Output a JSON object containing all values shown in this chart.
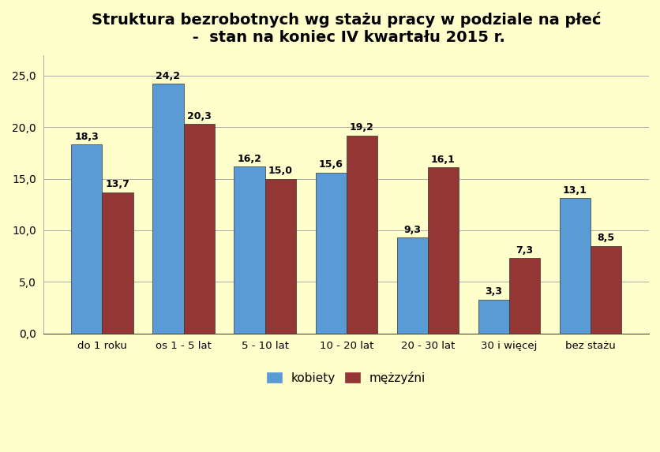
{
  "title": "Struktura bezrobotnych wg stażu pracy w podziale na płeć\n -  stan na koniec IV kwartału 2015 r.",
  "categories": [
    "do 1 roku",
    "os 1 - 5 lat",
    "5 - 10 lat",
    "10 - 20 lat",
    "20 - 30 lat",
    "30 i więcej",
    "bez stażu"
  ],
  "kobiety": [
    18.3,
    24.2,
    16.2,
    15.6,
    9.3,
    3.3,
    13.1
  ],
  "mezczyzni": [
    13.7,
    20.3,
    15.0,
    19.2,
    16.1,
    7.3,
    8.5
  ],
  "kobiety_color": "#5B9BD5",
  "mezczyzni_color": "#943634",
  "background_color": "#FFFFCC",
  "ylim": [
    0,
    27
  ],
  "yticks": [
    0.0,
    5.0,
    10.0,
    15.0,
    20.0,
    25.0
  ],
  "legend_labels": [
    "kobiety",
    "mężzyźni"
  ],
  "title_fontsize": 14,
  "label_fontsize": 9.5,
  "tick_fontsize": 10,
  "value_fontsize": 9
}
